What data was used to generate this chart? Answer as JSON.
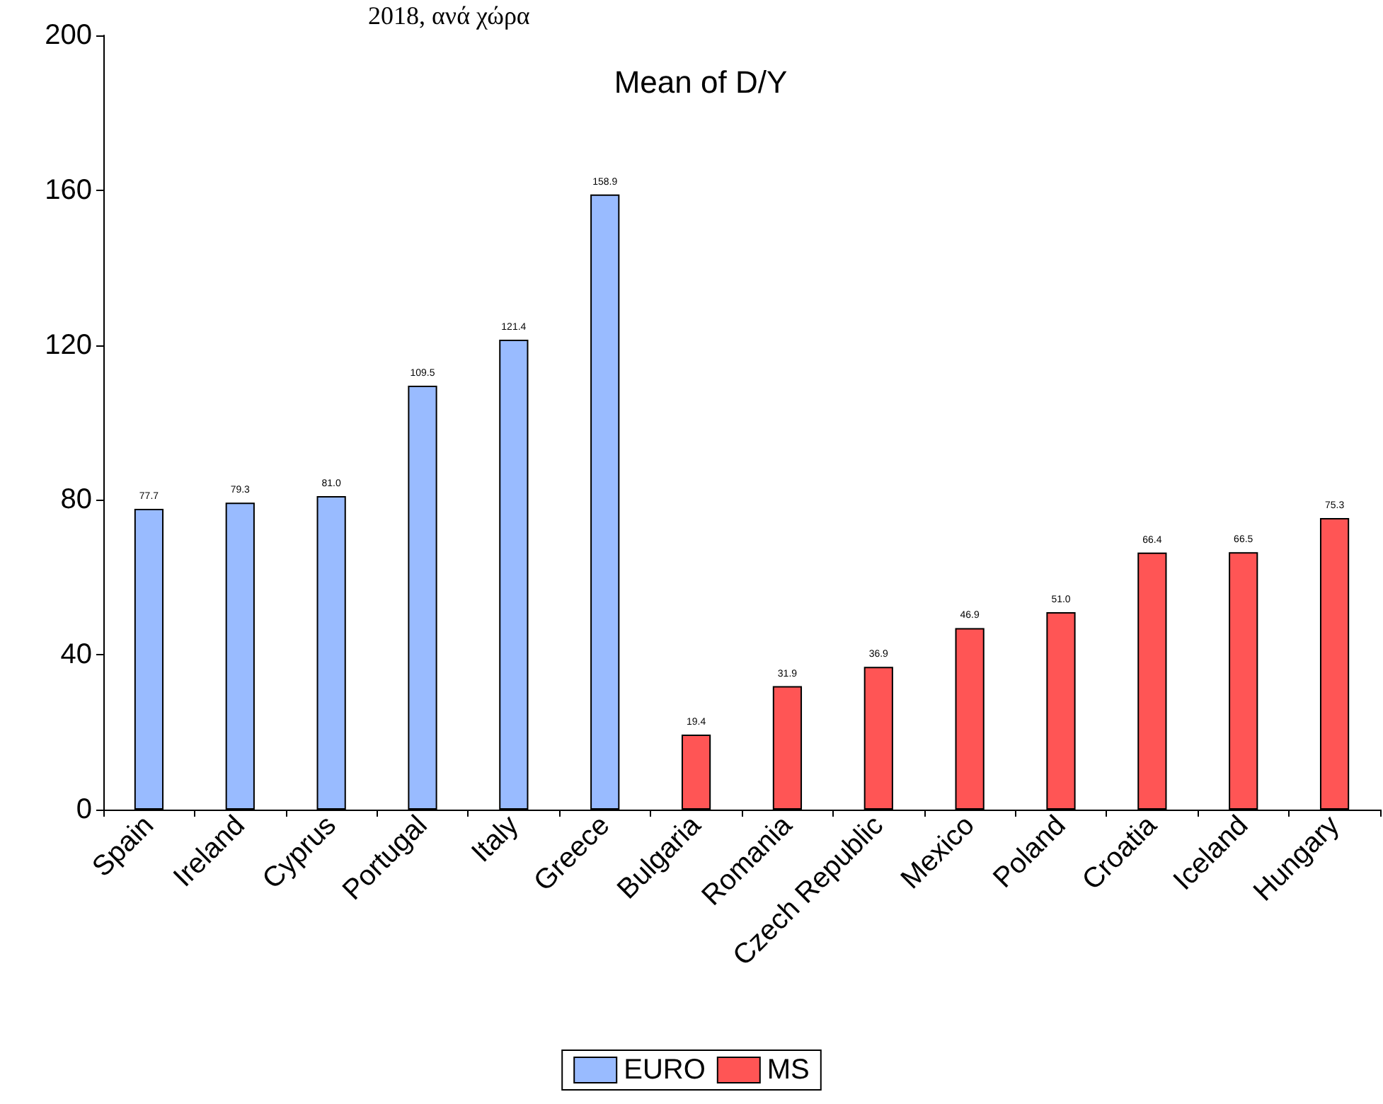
{
  "chart_data": {
    "type": "bar",
    "title": "Mean of D/Y",
    "annotations": [
      "2018, ανά χώρα"
    ],
    "categories": [
      "Spain",
      "Ireland",
      "Cyprus",
      "Portugal",
      "Italy",
      "Greece",
      "Bulgaria",
      "Romania",
      "Czech Republic",
      "Mexico",
      "Poland",
      "Croatia",
      "Iceland",
      "Hungary"
    ],
    "series": [
      {
        "name": "EURO",
        "color": "#99bbff",
        "values": [
          77.7,
          79.3,
          81.0,
          109.5,
          121.4,
          158.9,
          null,
          null,
          null,
          null,
          null,
          null,
          null,
          null
        ],
        "value_labels": [
          "77.7",
          "79.3",
          "81.0",
          "109.5",
          "121.4",
          "158.9",
          null,
          null,
          null,
          null,
          null,
          null,
          null,
          null
        ]
      },
      {
        "name": "MS",
        "color": "#ff5555",
        "values": [
          null,
          null,
          null,
          null,
          null,
          null,
          19.4,
          31.9,
          36.9,
          46.9,
          51.0,
          66.4,
          66.5,
          75.3
        ],
        "value_labels": [
          null,
          null,
          null,
          null,
          null,
          null,
          "19.4",
          "31.9",
          "36.9",
          "46.9",
          "51.0",
          "66.4",
          "66.5",
          "75.3"
        ]
      }
    ],
    "ylim": [
      0,
      200
    ],
    "yticks": [
      0,
      40,
      80,
      120,
      160,
      200
    ],
    "grid": false,
    "legend": "bottom"
  }
}
